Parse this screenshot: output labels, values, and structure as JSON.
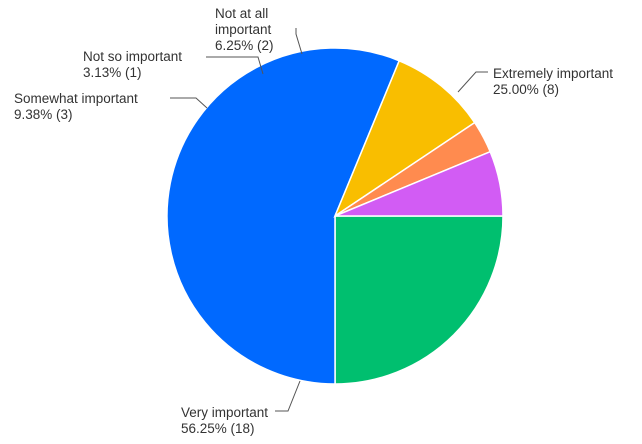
{
  "chart_data": {
    "type": "pie",
    "start_angle_deg": 0,
    "direction": "clockwise",
    "slices": [
      {
        "name": "extremely",
        "label_lines": [
          "Extremely important"
        ],
        "value_text": "25.00% (8)",
        "percent": 25.0,
        "count": 8,
        "color": "#00BF6F"
      },
      {
        "name": "very",
        "label_lines": [
          "Very important"
        ],
        "value_text": "56.25% (18)",
        "percent": 56.25,
        "count": 18,
        "color": "#0069FF"
      },
      {
        "name": "somewhat",
        "label_lines": [
          "Somewhat important"
        ],
        "value_text": "9.38% (3)",
        "percent": 9.38,
        "count": 3,
        "color": "#F9BE00"
      },
      {
        "name": "not-so",
        "label_lines": [
          "Not so important"
        ],
        "value_text": "3.13% (1)",
        "percent": 3.13,
        "count": 1,
        "color": "#FF8B4F"
      },
      {
        "name": "not-at-all",
        "label_lines": [
          "Not at all",
          "important"
        ],
        "value_text": "6.25% (2)",
        "percent": 6.25,
        "count": 2,
        "color": "#D25CF4"
      }
    ]
  }
}
